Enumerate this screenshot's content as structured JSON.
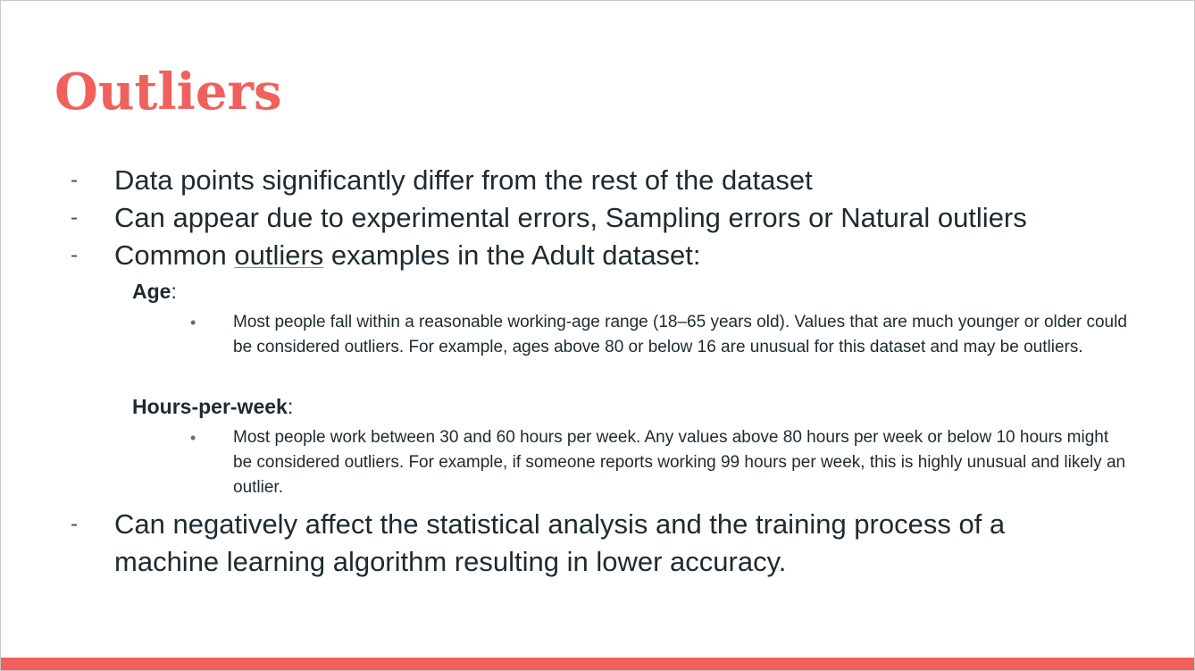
{
  "slide": {
    "title": "Outliers",
    "points": [
      "Data points significantly differ from the rest of the dataset",
      "Can appear due to experimental errors, Sampling errors or Natural outliers"
    ],
    "common": {
      "prefix": "Common ",
      "underlined": "outliers",
      "suffix": " examples in the Adult dataset:"
    },
    "age": {
      "label": "Age",
      "colon": ":",
      "text": "Most people fall within a reasonable working-age range (18–65 years old). Values that are much younger or older could be considered outliers. For example, ages above 80 or below 16 are unusual for this dataset and may be outliers."
    },
    "hours": {
      "label": "Hours-per-week",
      "colon": ":",
      "text": "Most people work between 30 and 60 hours per week. Any values above 80 hours per week or below 10 hours might be considered outliers. For example, if someone reports working 99 hours per week, this is highly unusual and likely an outlier."
    },
    "last_point": "Can negatively affect the statistical analysis and the training process of a machine learning algorithm resulting in lower accuracy.",
    "dash_glyph": "-",
    "bullet_glyph": "•"
  },
  "colors": {
    "accent": "#f0605c",
    "text": "#1f2a30"
  }
}
